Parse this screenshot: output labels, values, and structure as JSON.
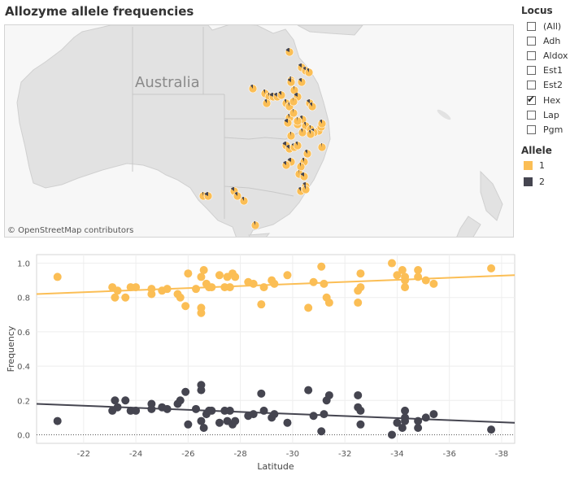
{
  "title": "Allozyme allele frequencies",
  "map": {
    "label": "Australia",
    "credit": "© OpenStreetMap contributors",
    "allele1_color": "#fbbe55",
    "allele2_color": "#454550"
  },
  "filter": {
    "title": "Locus",
    "options": [
      {
        "label": "(All)",
        "checked": false
      },
      {
        "label": "Adh",
        "checked": false
      },
      {
        "label": "Aldox",
        "checked": false
      },
      {
        "label": "Est1",
        "checked": false
      },
      {
        "label": "Est2",
        "checked": false
      },
      {
        "label": "Hex",
        "checked": true
      },
      {
        "label": "Lap",
        "checked": false
      },
      {
        "label": "Pgm",
        "checked": false
      }
    ]
  },
  "legend": {
    "title": "Allele",
    "items": [
      {
        "label": "1",
        "color": "#fbbe55"
      },
      {
        "label": "2",
        "color": "#454550"
      }
    ]
  },
  "chart_data": {
    "type": "scatter",
    "xlabel": "Latitude",
    "ylabel": "Frequency",
    "xlim": [
      -20.2,
      -38.5
    ],
    "ylim": [
      -0.05,
      1.05
    ],
    "xticks": [
      -22,
      -24,
      -26,
      -28,
      -30,
      -32,
      -34,
      -36,
      -38
    ],
    "yticks": [
      0.0,
      0.2,
      0.4,
      0.6,
      0.8,
      1.0
    ],
    "series": [
      {
        "name": "1",
        "color": "#fbbe55",
        "trend": {
          "x": [
            -20.2,
            -38.5
          ],
          "y": [
            0.82,
            0.93
          ]
        },
        "points": [
          [
            -21.0,
            0.92
          ],
          [
            -23.1,
            0.86
          ],
          [
            -23.2,
            0.8
          ],
          [
            -23.3,
            0.84
          ],
          [
            -23.6,
            0.8
          ],
          [
            -23.8,
            0.86
          ],
          [
            -24.0,
            0.86
          ],
          [
            -24.6,
            0.85
          ],
          [
            -24.6,
            0.82
          ],
          [
            -25.0,
            0.84
          ],
          [
            -25.2,
            0.85
          ],
          [
            -25.6,
            0.82
          ],
          [
            -25.7,
            0.8
          ],
          [
            -25.9,
            0.75
          ],
          [
            -26.0,
            0.94
          ],
          [
            -26.3,
            0.85
          ],
          [
            -26.5,
            0.74
          ],
          [
            -26.5,
            0.71
          ],
          [
            -26.5,
            0.92
          ],
          [
            -26.6,
            0.96
          ],
          [
            -26.7,
            0.88
          ],
          [
            -26.8,
            0.86
          ],
          [
            -26.9,
            0.86
          ],
          [
            -27.2,
            0.93
          ],
          [
            -27.4,
            0.86
          ],
          [
            -27.5,
            0.92
          ],
          [
            -27.6,
            0.86
          ],
          [
            -27.7,
            0.94
          ],
          [
            -27.8,
            0.92
          ],
          [
            -28.3,
            0.89
          ],
          [
            -28.5,
            0.88
          ],
          [
            -28.8,
            0.76
          ],
          [
            -28.9,
            0.86
          ],
          [
            -29.2,
            0.9
          ],
          [
            -29.3,
            0.88
          ],
          [
            -29.8,
            0.93
          ],
          [
            -30.6,
            0.74
          ],
          [
            -30.8,
            0.89
          ],
          [
            -31.1,
            0.98
          ],
          [
            -31.2,
            0.88
          ],
          [
            -31.3,
            0.8
          ],
          [
            -31.4,
            0.77
          ],
          [
            -32.5,
            0.77
          ],
          [
            -32.5,
            0.84
          ],
          [
            -32.6,
            0.86
          ],
          [
            -32.6,
            0.94
          ],
          [
            -33.8,
            1.0
          ],
          [
            -34.0,
            0.93
          ],
          [
            -34.2,
            0.96
          ],
          [
            -34.3,
            0.9
          ],
          [
            -34.3,
            0.86
          ],
          [
            -34.3,
            0.92
          ],
          [
            -34.8,
            0.96
          ],
          [
            -34.8,
            0.92
          ],
          [
            -35.1,
            0.9
          ],
          [
            -35.4,
            0.88
          ],
          [
            -37.6,
            0.97
          ]
        ]
      },
      {
        "name": "2",
        "color": "#454550",
        "trend": {
          "x": [
            -20.2,
            -38.5
          ],
          "y": [
            0.18,
            0.07
          ]
        },
        "points": [
          [
            -21.0,
            0.08
          ],
          [
            -23.1,
            0.14
          ],
          [
            -23.2,
            0.2
          ],
          [
            -23.3,
            0.16
          ],
          [
            -23.6,
            0.2
          ],
          [
            -23.8,
            0.14
          ],
          [
            -24.0,
            0.14
          ],
          [
            -24.6,
            0.15
          ],
          [
            -24.6,
            0.18
          ],
          [
            -25.0,
            0.16
          ],
          [
            -25.2,
            0.15
          ],
          [
            -25.6,
            0.18
          ],
          [
            -25.7,
            0.2
          ],
          [
            -25.9,
            0.25
          ],
          [
            -26.0,
            0.06
          ],
          [
            -26.3,
            0.15
          ],
          [
            -26.5,
            0.26
          ],
          [
            -26.5,
            0.29
          ],
          [
            -26.5,
            0.08
          ],
          [
            -26.6,
            0.04
          ],
          [
            -26.7,
            0.12
          ],
          [
            -26.8,
            0.14
          ],
          [
            -26.9,
            0.14
          ],
          [
            -27.2,
            0.07
          ],
          [
            -27.4,
            0.14
          ],
          [
            -27.5,
            0.08
          ],
          [
            -27.6,
            0.14
          ],
          [
            -27.7,
            0.06
          ],
          [
            -27.8,
            0.08
          ],
          [
            -28.3,
            0.11
          ],
          [
            -28.5,
            0.12
          ],
          [
            -28.8,
            0.24
          ],
          [
            -28.9,
            0.14
          ],
          [
            -29.2,
            0.1
          ],
          [
            -29.3,
            0.12
          ],
          [
            -29.8,
            0.07
          ],
          [
            -30.6,
            0.26
          ],
          [
            -30.8,
            0.11
          ],
          [
            -31.1,
            0.02
          ],
          [
            -31.2,
            0.12
          ],
          [
            -31.3,
            0.2
          ],
          [
            -31.4,
            0.23
          ],
          [
            -32.5,
            0.23
          ],
          [
            -32.5,
            0.16
          ],
          [
            -32.6,
            0.14
          ],
          [
            -32.6,
            0.06
          ],
          [
            -33.8,
            0.0
          ],
          [
            -34.0,
            0.07
          ],
          [
            -34.2,
            0.04
          ],
          [
            -34.3,
            0.1
          ],
          [
            -34.3,
            0.14
          ],
          [
            -34.3,
            0.08
          ],
          [
            -34.8,
            0.04
          ],
          [
            -34.8,
            0.08
          ],
          [
            -35.1,
            0.1
          ],
          [
            -35.4,
            0.12
          ],
          [
            -37.6,
            0.03
          ]
        ]
      }
    ]
  }
}
